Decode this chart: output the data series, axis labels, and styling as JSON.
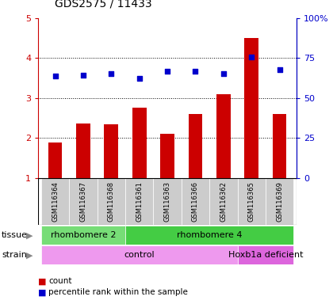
{
  "title": "GDS2575 / 11433",
  "samples": [
    "GSM116364",
    "GSM116367",
    "GSM116368",
    "GSM116361",
    "GSM116363",
    "GSM116366",
    "GSM116362",
    "GSM116365",
    "GSM116369"
  ],
  "counts": [
    1.88,
    2.37,
    2.35,
    2.75,
    2.1,
    2.6,
    3.1,
    4.5,
    2.6
  ],
  "percentile_ranks": [
    3.55,
    3.57,
    3.62,
    3.5,
    3.67,
    3.68,
    3.62,
    4.02,
    3.72
  ],
  "bar_color": "#cc0000",
  "dot_color": "#0000cc",
  "ylim_left": [
    1,
    5
  ],
  "ylim_right": [
    0,
    100
  ],
  "yticks_left": [
    1,
    2,
    3,
    4,
    5
  ],
  "yticks_right": [
    0,
    25,
    50,
    75,
    100
  ],
  "ytick_labels_left": [
    "1",
    "2",
    "3",
    "4",
    "5"
  ],
  "ytick_labels_right": [
    "0",
    "25",
    "50",
    "75",
    "100%"
  ],
  "tissue_groups": [
    {
      "label": "rhombomere 2",
      "start": 0,
      "end": 3,
      "color": "#77dd77"
    },
    {
      "label": "rhombomere 4",
      "start": 3,
      "end": 9,
      "color": "#44cc44"
    }
  ],
  "strain_groups": [
    {
      "label": "control",
      "start": 0,
      "end": 7,
      "color": "#ee99ee"
    },
    {
      "label": "Hoxb1a deficient",
      "start": 7,
      "end": 9,
      "color": "#dd66dd"
    }
  ],
  "legend_items": [
    {
      "label": "count",
      "color": "#cc0000"
    },
    {
      "label": "percentile rank within the sample",
      "color": "#0000cc"
    }
  ],
  "grid_color": "#000000",
  "bar_bottom": 1.0,
  "right_axis_color": "#0000cc",
  "left_axis_color": "#cc0000",
  "sample_box_color": "#cccccc",
  "plot_bg": "#ffffff"
}
